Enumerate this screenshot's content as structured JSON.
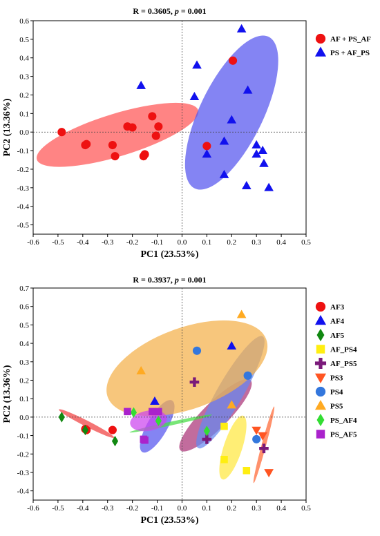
{
  "chart_data": [
    {
      "type": "scatter",
      "title_prefix": "R = 0.3605, ",
      "title_p": "p",
      "title_suffix": " = 0.001",
      "xlabel": "PC1 (23.53%)",
      "ylabel": "PC2 (13.36%)",
      "xlim": [
        -0.6,
        0.5
      ],
      "ylim": [
        -0.55,
        0.6
      ],
      "xticks": [
        "-0.6",
        "-0.5",
        "-0.4",
        "-0.3",
        "-0.2",
        "-0.1",
        "0.0",
        "0.1",
        "0.2",
        "0.3",
        "0.4",
        "0.5"
      ],
      "yticks": [
        "-0.5",
        "-0.4",
        "-0.3",
        "-0.2",
        "-0.1",
        "0.0",
        "0.1",
        "0.2",
        "0.3",
        "0.4",
        "0.5",
        "0.6"
      ],
      "grid": false,
      "legend_position": "right",
      "series": [
        {
          "name": "AF + PS_AF",
          "marker": "circle",
          "color": "#ee1111",
          "ellipse": {
            "cx": -0.26,
            "cy": -0.015,
            "rx": 0.34,
            "ry": 0.115,
            "angle_deg": -17,
            "fill": "#ff5555"
          },
          "points": [
            [
              -0.485,
              0.0
            ],
            [
              -0.39,
              -0.07
            ],
            [
              -0.385,
              -0.065
            ],
            [
              -0.28,
              -0.07
            ],
            [
              -0.27,
              -0.13
            ],
            [
              -0.22,
              0.03
            ],
            [
              -0.2,
              0.025
            ],
            [
              -0.155,
              -0.13
            ],
            [
              -0.15,
              -0.12
            ],
            [
              -0.12,
              0.085
            ],
            [
              -0.105,
              -0.02
            ],
            [
              -0.095,
              0.03
            ],
            [
              0.1,
              -0.075
            ],
            [
              0.205,
              0.385
            ]
          ]
        },
        {
          "name": "PS + AF_PS",
          "marker": "triangle",
          "color": "#1111ee",
          "ellipse": {
            "cx": 0.2,
            "cy": 0.105,
            "rx": 0.34,
            "ry": 0.17,
            "angle_deg": -64,
            "fill": "#5555ee"
          },
          "points": [
            [
              -0.165,
              0.25
            ],
            [
              0.05,
              0.19
            ],
            [
              0.06,
              0.36
            ],
            [
              0.1,
              -0.12
            ],
            [
              0.17,
              -0.23
            ],
            [
              0.17,
              -0.05
            ],
            [
              0.2,
              0.065
            ],
            [
              0.24,
              0.555
            ],
            [
              0.26,
              -0.29
            ],
            [
              0.265,
              0.225
            ],
            [
              0.3,
              -0.07
            ],
            [
              0.3,
              -0.12
            ],
            [
              0.325,
              -0.1
            ],
            [
              0.33,
              -0.17
            ],
            [
              0.35,
              -0.3
            ]
          ]
        }
      ]
    },
    {
      "type": "scatter",
      "title_prefix": "R = 0.3937, ",
      "title_p": "p",
      "title_suffix": " = 0.001",
      "xlabel": "PC1 (23.53%)",
      "ylabel": "PC2 (13.36%)",
      "xlim": [
        -0.6,
        0.5
      ],
      "ylim": [
        -0.45,
        0.7
      ],
      "xticks": [
        "-0.6",
        "-0.5",
        "-0.4",
        "-0.3",
        "-0.2",
        "-0.1",
        "0.0",
        "0.1",
        "0.2",
        "0.3",
        "0.4",
        "0.5"
      ],
      "yticks": [
        "-0.4",
        "-0.3",
        "-0.2",
        "-0.1",
        "0.0",
        "0.1",
        "0.2",
        "0.3",
        "0.4",
        "0.5",
        "0.6",
        "0.7"
      ],
      "grid": false,
      "legend_position": "right",
      "series": [
        {
          "name": "AF3",
          "marker": "circle",
          "color": "#ee1111",
          "ellipse": {
            "cx": -0.385,
            "cy": -0.035,
            "rx": 0.125,
            "ry": 0.016,
            "angle_deg": 27,
            "fill": "#f04040"
          },
          "points": [
            [
              -0.39,
              -0.065
            ],
            [
              -0.385,
              -0.07
            ],
            [
              -0.28,
              -0.07
            ]
          ]
        },
        {
          "name": "AF4",
          "marker": "triangle",
          "color": "#1111ee",
          "ellipse": {
            "cx": -0.1,
            "cy": -0.05,
            "rx": 0.12,
            "ry": 0.055,
            "angle_deg": -60,
            "fill": "#5555ee"
          },
          "points": [
            [
              -0.11,
              0.085
            ],
            [
              0.2,
              0.385
            ]
          ]
        },
        {
          "name": "AF5",
          "marker": "diamond",
          "color": "#118811",
          "ellipse": null,
          "points": [
            [
              -0.485,
              0.0
            ],
            [
              -0.39,
              -0.07
            ],
            [
              -0.27,
              -0.13
            ]
          ]
        },
        {
          "name": "AF_PS4",
          "marker": "square",
          "color": "#ffee11",
          "ellipse": {
            "cx": 0.205,
            "cy": -0.165,
            "rx": 0.135,
            "ry": 0.05,
            "angle_deg": -72,
            "fill": "#ffe840"
          },
          "points": [
            [
              0.17,
              -0.05
            ],
            [
              0.17,
              -0.23
            ],
            [
              0.26,
              -0.29
            ]
          ]
        },
        {
          "name": "AF_PS5",
          "marker": "plus",
          "color": "#7a1a7a",
          "ellipse": {
            "cx": 0.135,
            "cy": 0.01,
            "rx": 0.2,
            "ry": 0.07,
            "angle_deg": -45,
            "fill": "#aa3377"
          },
          "points": [
            [
              0.05,
              0.19
            ],
            [
              0.1,
              -0.12
            ],
            [
              0.33,
              -0.17
            ]
          ]
        },
        {
          "name": "PS3",
          "marker": "triangle-down",
          "color": "#ff5522",
          "ellipse": {
            "cx": 0.33,
            "cy": -0.15,
            "rx": 0.16,
            "ry": 0.012,
            "angle_deg": -75,
            "fill": "#ff6633"
          },
          "points": [
            [
              0.3,
              -0.07
            ],
            [
              0.325,
              -0.1
            ],
            [
              0.35,
              -0.3
            ]
          ]
        },
        {
          "name": "PS4",
          "marker": "circle",
          "color": "#3377dd",
          "ellipse": {
            "cx": 0.195,
            "cy": 0.135,
            "rx": 0.26,
            "ry": 0.07,
            "angle_deg": -60,
            "fill": "#6688ee"
          },
          "points": [
            [
              0.06,
              0.36
            ],
            [
              0.265,
              0.225
            ],
            [
              0.3,
              -0.12
            ]
          ]
        },
        {
          "name": "PS5",
          "marker": "triangle",
          "color": "#ffaa22",
          "ellipse": {
            "cx": 0.02,
            "cy": 0.265,
            "rx": 0.34,
            "ry": 0.22,
            "angle_deg": -20,
            "fill": "#f4b04a"
          },
          "points": [
            [
              -0.165,
              0.25
            ],
            [
              0.2,
              0.065
            ],
            [
              0.24,
              0.555
            ]
          ]
        },
        {
          "name": "PS_AF4",
          "marker": "diamond",
          "color": "#33dd33",
          "ellipse": {
            "cx": -0.045,
            "cy": -0.035,
            "rx": 0.17,
            "ry": 0.01,
            "angle_deg": -12,
            "fill": "#44dd44"
          },
          "points": [
            [
              -0.195,
              0.025
            ],
            [
              -0.095,
              -0.02
            ],
            [
              0.1,
              -0.075
            ]
          ]
        },
        {
          "name": "PS_AF5",
          "marker": "square",
          "color": "#aa22cc",
          "ellipse": {
            "cx": -0.135,
            "cy": -0.02,
            "rx": 0.075,
            "ry": 0.055,
            "angle_deg": -10,
            "fill": "#cc44ee"
          },
          "points": [
            [
              -0.22,
              0.03
            ],
            [
              -0.155,
              -0.12
            ],
            [
              -0.15,
              -0.125
            ],
            [
              -0.12,
              0.03
            ],
            [
              -0.095,
              0.03
            ]
          ]
        }
      ]
    }
  ]
}
